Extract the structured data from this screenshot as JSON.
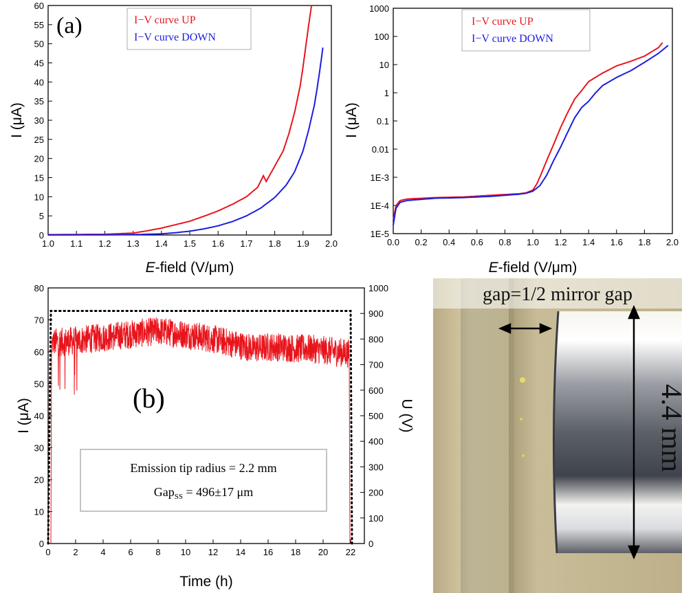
{
  "chart_data": [
    {
      "type": "line",
      "panel_label": "(a)",
      "xlabel_italic": "E",
      "xlabel_rest": "-field (V/μm)",
      "ylabel": "I (μA)",
      "xlim": [
        1.0,
        2.0
      ],
      "ylim": [
        0,
        60
      ],
      "xticks": [
        "1.0",
        "1.1",
        "1.2",
        "1.3",
        "1.4",
        "1.5",
        "1.6",
        "1.7",
        "1.8",
        "1.9",
        "2.0"
      ],
      "yticks": [
        "0",
        "5",
        "10",
        "15",
        "20",
        "25",
        "30",
        "35",
        "40",
        "45",
        "50",
        "55",
        "60"
      ],
      "legend_position": "top-center",
      "series": [
        {
          "name": "I−V curve UP",
          "color": "#e8141c",
          "x": [
            1.0,
            1.2,
            1.3,
            1.35,
            1.4,
            1.45,
            1.5,
            1.55,
            1.6,
            1.65,
            1.7,
            1.74,
            1.76,
            1.77,
            1.8,
            1.83,
            1.85,
            1.87,
            1.89,
            1.9,
            1.91,
            1.92,
            1.93
          ],
          "y": [
            0.1,
            0.2,
            0.5,
            1.1,
            1.8,
            2.7,
            3.6,
            4.9,
            6.3,
            8.0,
            10.0,
            12.5,
            15.5,
            14.0,
            18.0,
            22.0,
            26.5,
            32.0,
            39.0,
            44.0,
            49.5,
            55.0,
            60.0
          ]
        },
        {
          "name": "I−V curve DOWN",
          "color": "#1c1ce0",
          "x": [
            1.0,
            1.3,
            1.4,
            1.45,
            1.5,
            1.55,
            1.6,
            1.65,
            1.7,
            1.75,
            1.8,
            1.84,
            1.87,
            1.9,
            1.92,
            1.94,
            1.95,
            1.96,
            1.97
          ],
          "y": [
            0.0,
            0.1,
            0.3,
            0.6,
            1.0,
            1.6,
            2.4,
            3.5,
            5.0,
            7.0,
            9.8,
            13.0,
            16.5,
            22.0,
            27.5,
            34.0,
            38.5,
            43.5,
            49.0
          ]
        }
      ]
    },
    {
      "type": "line",
      "xlabel_italic": "E",
      "xlabel_rest": "-field (V/μm)",
      "ylabel": "I (μA)",
      "yscale": "log",
      "xlim": [
        0.0,
        2.0
      ],
      "ylim": [
        1e-05,
        1000
      ],
      "xticks": [
        "0.0",
        "0.2",
        "0.4",
        "0.6",
        "0.8",
        "1.0",
        "1.2",
        "1.4",
        "1.6",
        "1.8",
        "2.0"
      ],
      "yticks": [
        "1E-5",
        "1E-4",
        "1E-3",
        "0.01",
        "0.1",
        "1",
        "10",
        "100",
        "1000"
      ],
      "legend_position": "top-center",
      "series": [
        {
          "name": "I−V curve UP",
          "color": "#e8141c",
          "x": [
            0.0,
            0.02,
            0.05,
            0.1,
            0.3,
            0.5,
            0.7,
            0.9,
            0.95,
            1.0,
            1.03,
            1.06,
            1.1,
            1.15,
            1.2,
            1.25,
            1.3,
            1.35,
            1.4,
            1.5,
            1.6,
            1.7,
            1.8,
            1.9,
            1.93
          ],
          "y": [
            3e-05,
            0.0001,
            0.00015,
            0.00017,
            0.00019,
            0.0002,
            0.00023,
            0.00026,
            0.00028,
            0.00035,
            0.0006,
            0.0013,
            0.004,
            0.015,
            0.06,
            0.2,
            0.6,
            1.2,
            2.5,
            5,
            9,
            13,
            20,
            40,
            60
          ]
        },
        {
          "name": "I−V curve DOWN",
          "color": "#1c1ce0",
          "x": [
            0.0,
            0.02,
            0.05,
            0.1,
            0.3,
            0.5,
            0.7,
            0.9,
            0.95,
            1.0,
            1.05,
            1.1,
            1.15,
            1.2,
            1.25,
            1.3,
            1.35,
            1.4,
            1.45,
            1.5,
            1.6,
            1.7,
            1.8,
            1.9,
            1.97
          ],
          "y": [
            2e-05,
            8e-05,
            0.00013,
            0.00015,
            0.00018,
            0.00019,
            0.00021,
            0.00025,
            0.00027,
            0.00032,
            0.0005,
            0.0012,
            0.004,
            0.012,
            0.04,
            0.13,
            0.3,
            0.5,
            1.0,
            1.8,
            3.5,
            6.0,
            12,
            25,
            48
          ]
        }
      ]
    },
    {
      "type": "line",
      "panel_label": "(b)",
      "xlabel": "Time (h)",
      "ylabel": "I (μA)",
      "ylabel_right": "U (V)",
      "xlim": [
        0,
        23
      ],
      "ylim": [
        0,
        80
      ],
      "y2lim": [
        0,
        1000
      ],
      "xticks": [
        "0",
        "2",
        "4",
        "6",
        "8",
        "10",
        "12",
        "14",
        "16",
        "18",
        "20",
        "22"
      ],
      "yticks": [
        "0",
        "10",
        "20",
        "30",
        "40",
        "50",
        "60",
        "70",
        "80"
      ],
      "y2ticks": [
        "0",
        "100",
        "200",
        "300",
        "400",
        "500",
        "600",
        "700",
        "800",
        "900",
        "1000"
      ],
      "annotation_line1": "Emission tip radius = 2.2 mm",
      "annotation_line2_prefix": "Gap",
      "annotation_line2_sub": "SS",
      "annotation_line2_suffix": " = 496±17 μm",
      "series": [
        {
          "name": "I",
          "color": "#e8141c",
          "axis": "left",
          "mean_x": [
            0.3,
            0.8,
            2,
            4,
            6,
            8,
            9,
            10,
            12,
            14,
            15,
            16,
            17,
            18,
            19,
            20,
            21,
            21.9
          ],
          "mean_y": [
            63,
            63,
            63.5,
            64.5,
            65.5,
            66.5,
            66,
            65.5,
            64,
            62,
            61,
            61.5,
            61.5,
            61,
            61,
            60.5,
            60,
            59.5
          ],
          "noise_amplitude": 4.5
        },
        {
          "name": "U",
          "color": "#000000",
          "axis": "right",
          "style": "dotted",
          "x": [
            0.0,
            0.2,
            22.0,
            22.1
          ],
          "y": [
            0,
            910,
            910,
            0
          ]
        }
      ]
    },
    {
      "type": "image",
      "gap_label": "gap=1/2 mirror gap",
      "height_label": "4.4 mm"
    }
  ]
}
